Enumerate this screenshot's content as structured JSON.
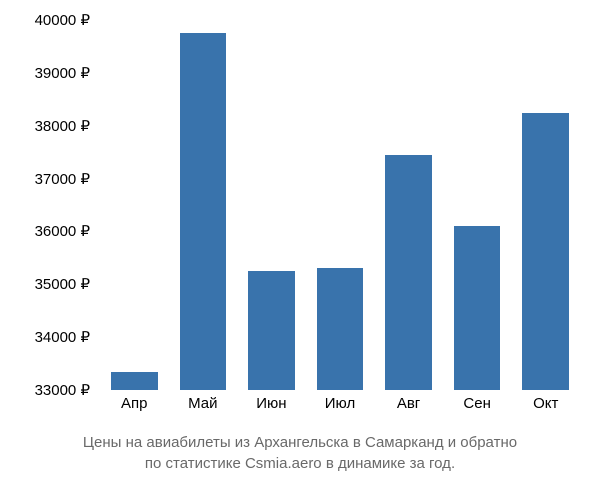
{
  "chart": {
    "type": "bar",
    "categories": [
      "Апр",
      "Май",
      "Июн",
      "Июл",
      "Авг",
      "Сен",
      "Окт"
    ],
    "values": [
      33350,
      39750,
      35250,
      35300,
      37450,
      36100,
      38250
    ],
    "bar_color": "#3973ac",
    "background_color": "#ffffff",
    "ylim": [
      33000,
      40000
    ],
    "ytick_step": 1000,
    "ytick_labels": [
      "33000 ₽",
      "34000 ₽",
      "35000 ₽",
      "36000 ₽",
      "37000 ₽",
      "38000 ₽",
      "39000 ₽",
      "40000 ₽"
    ],
    "bar_width_ratio": 0.68,
    "label_fontsize": 15,
    "label_color": "#000000",
    "caption_fontsize": 15,
    "caption_color": "#696969"
  },
  "caption": {
    "line1": "Цены на авиабилеты из Архангельска в Самарканд и обратно",
    "line2": "по статистике Csmia.aero в динамике за год."
  }
}
